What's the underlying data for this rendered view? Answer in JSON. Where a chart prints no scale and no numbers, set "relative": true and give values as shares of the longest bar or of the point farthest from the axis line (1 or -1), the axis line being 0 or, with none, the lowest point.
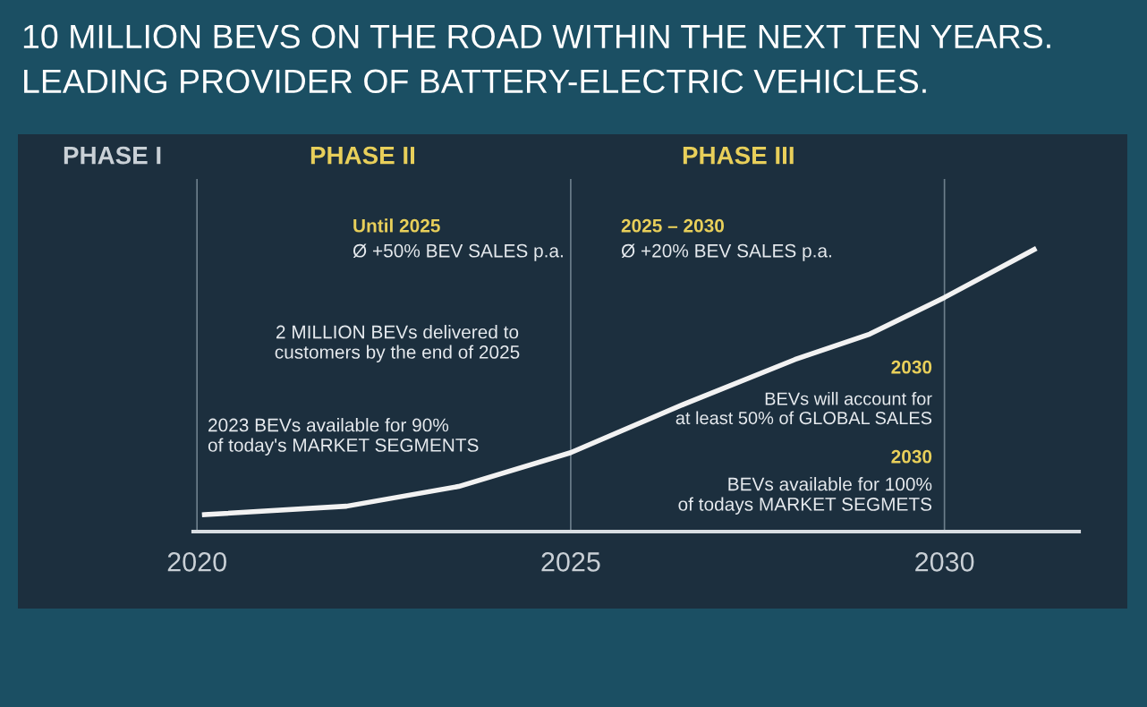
{
  "chart_data": {
    "type": "line",
    "title": "10 MILLION BEVS ON THE ROAD WITHIN THE NEXT TEN YEARS.",
    "subtitle": "LEADING PROVIDER OF BATTERY-ELECTRIC VEHICLES.",
    "x": [
      2020.1,
      2022,
      2023.5,
      2025,
      2026.5,
      2028,
      2029,
      2030,
      2031.2
    ],
    "series": [
      {
        "color": "#f2f2f2",
        "values": [
          0.06,
          0.09,
          0.16,
          0.28,
          0.45,
          0.61,
          0.7,
          0.83,
          1
        ]
      }
    ],
    "relative": true,
    "xlim": [
      2019.95,
      2031.8
    ],
    "xticks": [
      2020,
      2025,
      2030
    ],
    "grid": "x",
    "marker": "none",
    "line_style": "solid",
    "annotations": [
      "PHASE I",
      "PHASE II",
      "PHASE III",
      "Until 2025",
      "Ø +50% BEV SALES p.a.",
      "2 MILLION BEVs delivered to\ncustomers by the end of 2025",
      "2023 BEVs available for 90%\nof today's MARKET SEGMENTS",
      "2025 – 2030",
      "Ø +20% BEV SALES p.a.",
      "2030",
      "BEVs will account for\nat least 50% of GLOBAL SALES",
      "2030",
      "BEVs available for 100%\nof todays MARKET SEGMETS"
    ]
  }
}
